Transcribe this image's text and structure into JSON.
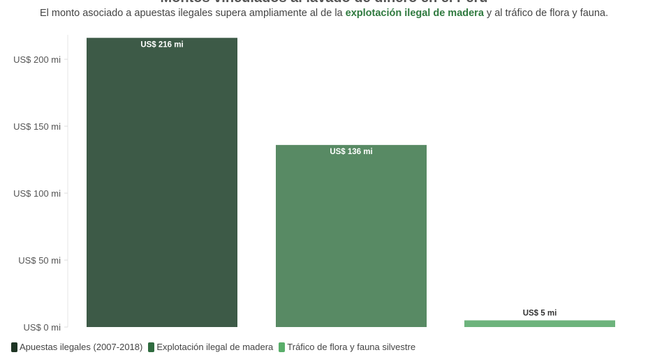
{
  "chart_data": {
    "type": "bar",
    "title": "Montos vinculados al lavado de dinero en el Perú",
    "subtitle": {
      "before": "El monto asociado a apuestas ilegales supera ampliamente al de la ",
      "highlight": "explotación ilegal de madera",
      "after": " y al tráfico de flora y fauna."
    },
    "categories": [
      "Apuestas ilegales (2007-2018)",
      "Explotación ilegal de madera",
      "Tráfico de flora y fauna silvestre"
    ],
    "values": [
      216,
      136,
      5
    ],
    "data_labels": [
      "US$ 216 mi",
      "US$ 136 mi",
      "US$ 5 mi"
    ],
    "bar_colors": [
      "#3d5a47",
      "#588a64",
      "#6db37c"
    ],
    "legend_colors": [
      "#1e3524",
      "#2f6b3f",
      "#5aae6a"
    ],
    "ylim": [
      0,
      216
    ],
    "yticks": [
      0,
      50,
      100,
      150,
      200
    ],
    "ytick_labels": [
      "US$ 0 mi",
      "US$ 50 mi",
      "US$ 100 mi",
      "US$ 150 mi",
      "US$ 200 mi"
    ],
    "xlabel": "",
    "ylabel": "",
    "grid": false,
    "legend_position": "bottom-left"
  }
}
